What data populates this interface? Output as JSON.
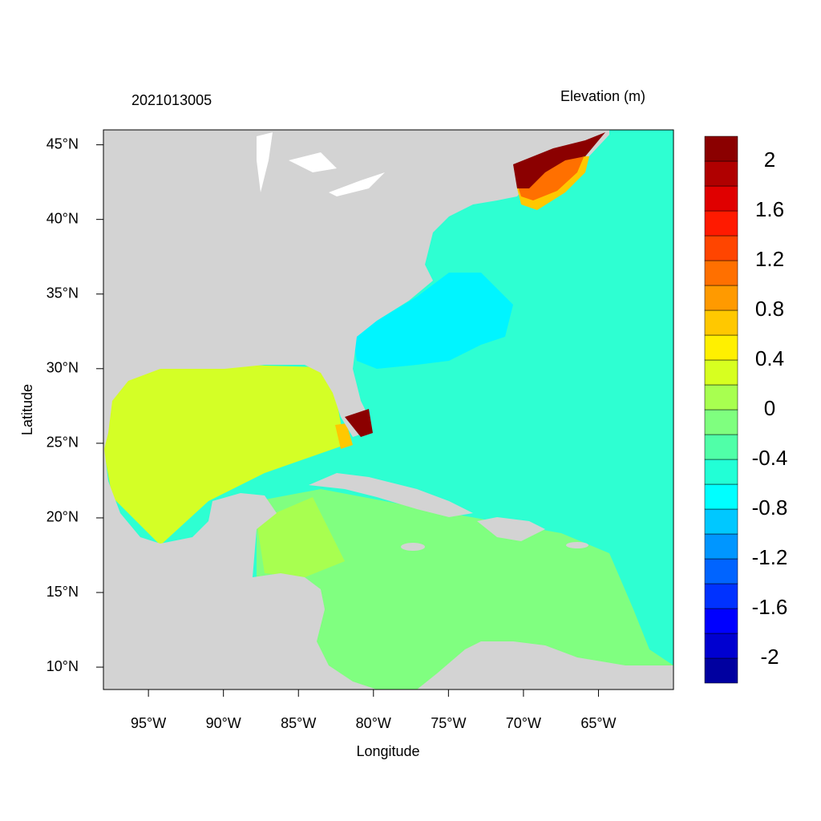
{
  "chart_data": {
    "type": "map",
    "title": "2021013005",
    "subtitle": "Elevation (m)",
    "x_label": "Longitude",
    "y_label": "Latitude",
    "xlim": [
      -98,
      -60
    ],
    "ylim": [
      8.5,
      46
    ],
    "xticks": [
      {
        "value": -95,
        "label": "95°W"
      },
      {
        "value": -90,
        "label": "90°W"
      },
      {
        "value": -85,
        "label": "85°W"
      },
      {
        "value": -80,
        "label": "80°W"
      },
      {
        "value": -75,
        "label": "75°W"
      },
      {
        "value": -70,
        "label": "70°W"
      },
      {
        "value": -65,
        "label": "65°W"
      }
    ],
    "yticks": [
      {
        "value": 10,
        "label": "10°N"
      },
      {
        "value": 15,
        "label": "15°N"
      },
      {
        "value": 20,
        "label": "20°N"
      },
      {
        "value": 25,
        "label": "25°N"
      },
      {
        "value": 30,
        "label": "30°N"
      },
      {
        "value": 35,
        "label": "35°N"
      },
      {
        "value": 40,
        "label": "40°N"
      },
      {
        "value": 45,
        "label": "45°N"
      }
    ],
    "colorbar": {
      "clim": [
        -2.2,
        2.2
      ],
      "colors": [
        "#0000a0",
        "#0000d0",
        "#0000ff",
        "#0032ff",
        "#0064ff",
        "#0096ff",
        "#00c8ff",
        "#00ffff",
        "#22ffd6",
        "#50ffa8",
        "#7fff7f",
        "#a8ff50",
        "#d7ff20",
        "#fff000",
        "#ffc800",
        "#ff9a00",
        "#ff7000",
        "#ff4500",
        "#ff1a00",
        "#e00000",
        "#b00000",
        "#8b0000"
      ],
      "ticks": [
        -2,
        -1.6,
        -1.2,
        -0.8,
        -0.4,
        0,
        0.4,
        0.8,
        1.2,
        1.6,
        2
      ]
    }
  }
}
